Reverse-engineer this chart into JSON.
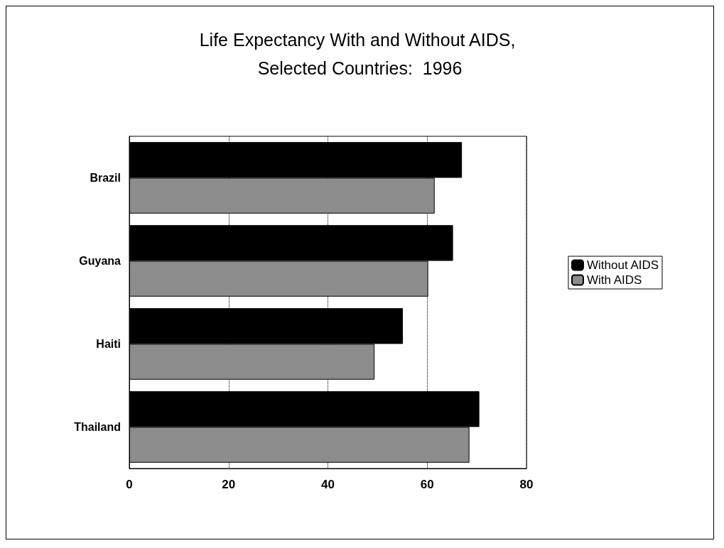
{
  "chart_data": {
    "type": "bar",
    "orientation": "horizontal",
    "title": "Life Expectancy With and Without AIDS, Selected Countries:  1996",
    "categories": [
      "Brazil",
      "Guyana",
      "Haiti",
      "Thailand"
    ],
    "series": [
      {
        "name": "Without AIDS",
        "color": "#000000",
        "values": [
          67.0,
          65.2,
          55.1,
          70.5
        ]
      },
      {
        "name": "With AIDS",
        "color": "#8c8c8c",
        "values": [
          61.5,
          60.2,
          49.4,
          68.5
        ]
      }
    ],
    "xlim": [
      0,
      80
    ],
    "xticks": [
      0,
      20,
      40,
      60,
      80
    ],
    "grid": "x",
    "legend": "right"
  }
}
